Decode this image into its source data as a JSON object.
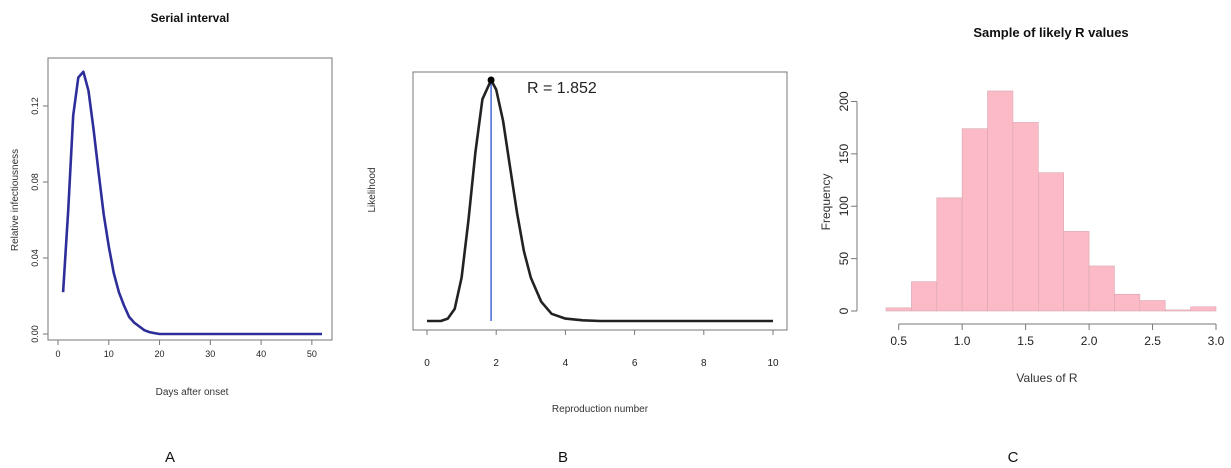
{
  "panels": [
    {
      "label": "A"
    },
    {
      "label": "B"
    },
    {
      "label": "C"
    }
  ],
  "chart_data": [
    {
      "type": "line",
      "title": "Serial interval",
      "xlabel": "Days after onset",
      "ylabel": "Relative infectiousness",
      "xlim": [
        0,
        52
      ],
      "ylim": [
        0,
        0.14
      ],
      "x_ticks": [
        0,
        10,
        20,
        30,
        40,
        50
      ],
      "y_ticks": [
        0.0,
        0.04,
        0.08,
        0.12
      ],
      "series_color": "#2e2e9a",
      "x": [
        1,
        2,
        3,
        4,
        5,
        6,
        7,
        8,
        9,
        10,
        11,
        12,
        13,
        14,
        15,
        16,
        17,
        18,
        19,
        20,
        22,
        25,
        30,
        35,
        40,
        45,
        50,
        52
      ],
      "y": [
        0.022,
        0.065,
        0.115,
        0.135,
        0.138,
        0.128,
        0.108,
        0.085,
        0.063,
        0.046,
        0.032,
        0.022,
        0.015,
        0.009,
        0.006,
        0.004,
        0.002,
        0.001,
        0.0005,
        0.0,
        0.0,
        0.0,
        0.0,
        0.0,
        0.0,
        0.0,
        0.0,
        0.0
      ],
      "grid": false
    },
    {
      "type": "line",
      "title": "",
      "xlabel": "Reproduction number",
      "ylabel": "Likelihood",
      "xlim": [
        0,
        10
      ],
      "x_ticks": [
        0,
        2,
        4,
        6,
        8,
        10
      ],
      "annotation": "R = 1.852",
      "peak_x": 1.852,
      "series_color": "#222222",
      "marker_line_color": "#3b5bd6",
      "x": [
        0,
        0.4,
        0.6,
        0.8,
        1.0,
        1.2,
        1.4,
        1.6,
        1.852,
        2.0,
        2.2,
        2.4,
        2.6,
        2.8,
        3.0,
        3.3,
        3.6,
        4.0,
        4.5,
        5,
        6,
        7,
        8,
        9,
        10
      ],
      "y": [
        0.0,
        0.0,
        0.01,
        0.05,
        0.18,
        0.42,
        0.7,
        0.92,
        1.0,
        0.96,
        0.83,
        0.64,
        0.45,
        0.29,
        0.18,
        0.08,
        0.03,
        0.01,
        0.003,
        0.0,
        0.0,
        0.0,
        0.0,
        0.0,
        0.0
      ],
      "grid": false
    },
    {
      "type": "bar",
      "title": "Sample of likely R values",
      "xlabel": "Values of R",
      "ylabel": "Frequency",
      "xlim": [
        0.4,
        3.0
      ],
      "ylim": [
        0,
        210
      ],
      "x_ticks": [
        "0.5",
        "1.0",
        "1.5",
        "2.0",
        "2.5",
        "3.0"
      ],
      "y_ticks": [
        "0",
        "50",
        "100",
        "150",
        "200"
      ],
      "bar_color": "#fbbac6",
      "bin_edges": [
        0.4,
        0.6,
        0.8,
        1.0,
        1.2,
        1.4,
        1.6,
        1.8,
        2.0,
        2.2,
        2.4,
        2.6,
        2.8,
        3.0
      ],
      "values": [
        3,
        28,
        108,
        174,
        210,
        180,
        132,
        76,
        43,
        16,
        10,
        1,
        4
      ],
      "grid": false
    }
  ]
}
